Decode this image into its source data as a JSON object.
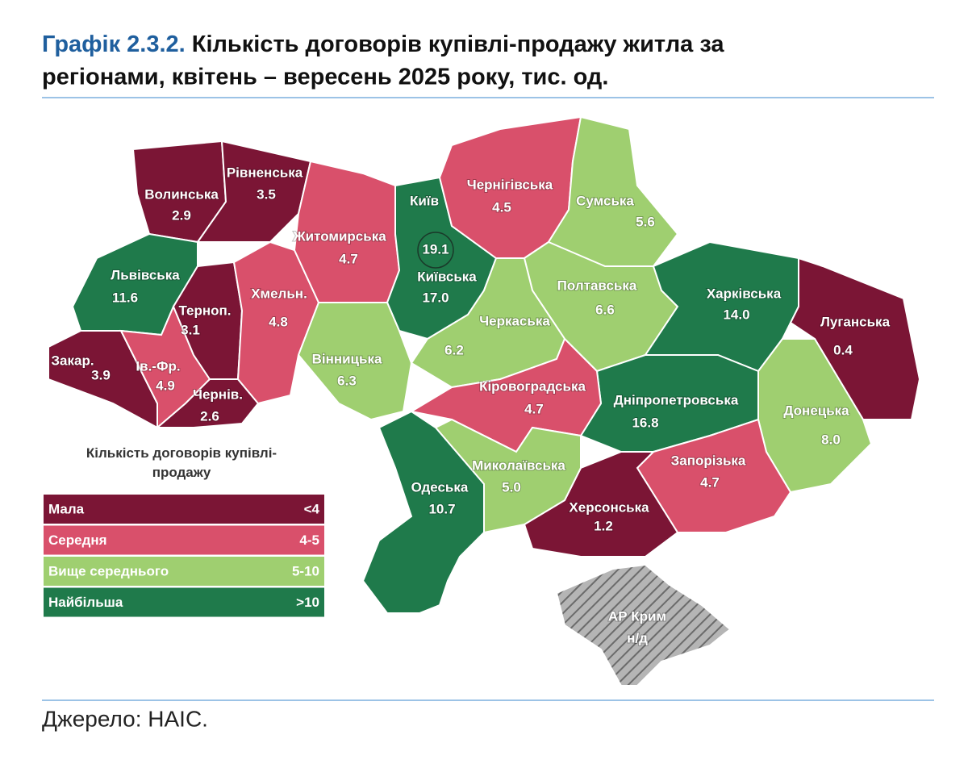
{
  "title": {
    "number": "Графік 2.3.2.",
    "line1": "Кількість договорів купівлі-продажу житла за",
    "line2": "регіонами, квітень – вересень 2025 року, тис. од."
  },
  "regions": [
    {
      "name": "Волинська",
      "value": 2.9,
      "color": "#7b1535"
    },
    {
      "name": "Рівненська",
      "value": 3.5,
      "color": "#7b1535"
    },
    {
      "name": "Львівська",
      "value": 11.6,
      "color": "#1f7a4b"
    },
    {
      "name": "Закар.",
      "value": 3.9,
      "color": "#7b1535"
    },
    {
      "name": "Ів.-Фр.",
      "value": 4.9,
      "color": "#d9506b"
    },
    {
      "name": "Терноп.",
      "value": 3.1,
      "color": "#7b1535"
    },
    {
      "name": "Чернів.",
      "value": 2.6,
      "color": "#7b1535"
    },
    {
      "name": "Хмельн.",
      "value": 4.8,
      "color": "#d9506b"
    },
    {
      "name": "Житомирська",
      "value": 4.7,
      "color": "#d9506b"
    },
    {
      "name": "Київська",
      "value": 17,
      "value_label": "17.0",
      "color": "#1f7a4b"
    },
    {
      "name": "Київ",
      "value": 19.1,
      "color": "#1f7a4b"
    },
    {
      "name": "Вінницька",
      "value": 6.3,
      "color": "#9fcf70"
    },
    {
      "name": "Чернігівська",
      "value": 4.5,
      "color": "#d9506b"
    },
    {
      "name": "Сумська",
      "value": 5.6,
      "color": "#9fcf70"
    },
    {
      "name": "Полтавська",
      "value": 6.6,
      "color": "#9fcf70"
    },
    {
      "name": "Черкаська",
      "value": 6.2,
      "color": "#9fcf70"
    },
    {
      "name": "Харківська",
      "value": 14,
      "value_label": "14.0",
      "color": "#1f7a4b"
    },
    {
      "name": "Луганська",
      "value": 0.4,
      "color": "#7b1535"
    },
    {
      "name": "Донецька",
      "value": 8,
      "value_label": "8.0",
      "color": "#9fcf70"
    },
    {
      "name": "Дніпропетровська",
      "value": 16.8,
      "color": "#1f7a4b"
    },
    {
      "name": "Кіровоградська",
      "value": 4.7,
      "color": "#d9506b"
    },
    {
      "name": "Запорізька",
      "value": 4.7,
      "color": "#d9506b"
    },
    {
      "name": "Херсонська",
      "value": 1.2,
      "color": "#7b1535"
    },
    {
      "name": "Миколаївська",
      "value": 5,
      "value_label": "5.0",
      "color": "#9fcf70"
    },
    {
      "name": "Одеська",
      "value": 10.7,
      "color": "#1f7a4b"
    }
  ],
  "crimea": {
    "name": "АР Крим",
    "note": "н/д"
  },
  "legend": {
    "title": "Кількість договорів купівлі-продажу",
    "items": [
      {
        "label": "Мала",
        "range": "<4",
        "color": "#7b1535"
      },
      {
        "label": "Середня",
        "range": "4-5",
        "color": "#d9506b"
      },
      {
        "label": "Вище середнього",
        "range": "5-10",
        "color": "#9fcf70"
      },
      {
        "label": "Найбільша",
        "range": ">10",
        "color": "#1f7a4b"
      }
    ]
  },
  "source": "Джерело: НАІС."
}
